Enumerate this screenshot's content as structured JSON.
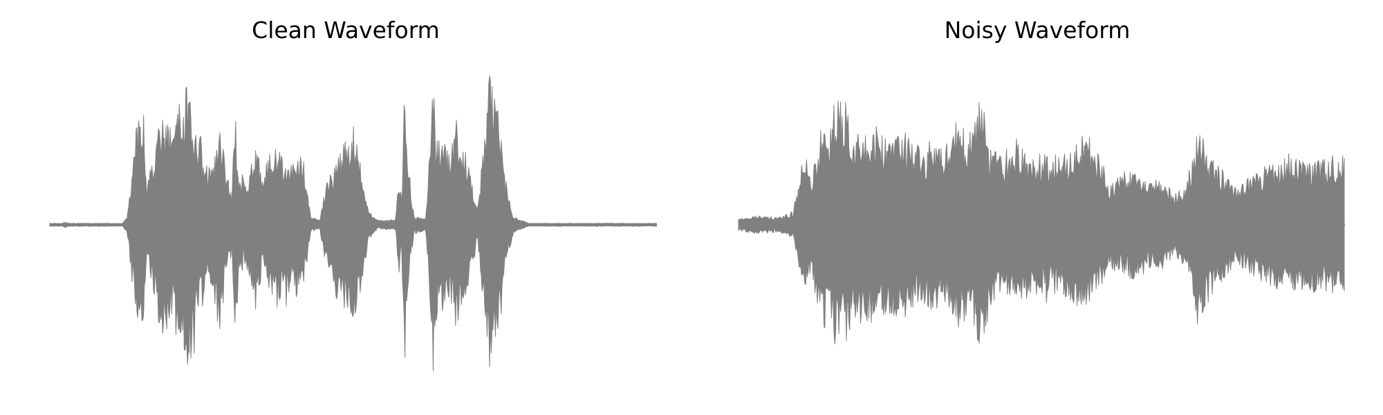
{
  "chart_data": [
    {
      "type": "line",
      "title": "Clean Waveform",
      "xlabel": "",
      "ylabel": "",
      "axis_visible": false,
      "grid": false,
      "x_range": [
        0,
        1
      ],
      "ylim": [
        -1,
        1
      ],
      "series": [
        {
          "color": "#808080",
          "envelope": [
            [
              0.0,
              0.01
            ],
            [
              0.02,
              0.01
            ],
            [
              0.025,
              0.02
            ],
            [
              0.03,
              0.01
            ],
            [
              0.12,
              0.01
            ],
            [
              0.128,
              0.06
            ],
            [
              0.135,
              0.35
            ],
            [
              0.145,
              0.7
            ],
            [
              0.15,
              0.8
            ],
            [
              0.155,
              0.75
            ],
            [
              0.16,
              0.25
            ],
            [
              0.17,
              0.45
            ],
            [
              0.18,
              0.65
            ],
            [
              0.19,
              0.72
            ],
            [
              0.2,
              0.62
            ],
            [
              0.21,
              0.78
            ],
            [
              0.22,
              0.82
            ],
            [
              0.23,
              0.92
            ],
            [
              0.24,
              0.68
            ],
            [
              0.25,
              0.55
            ],
            [
              0.26,
              0.35
            ],
            [
              0.27,
              0.45
            ],
            [
              0.28,
              0.72
            ],
            [
              0.29,
              0.35
            ],
            [
              0.3,
              0.2
            ],
            [
              0.305,
              0.8
            ],
            [
              0.312,
              0.3
            ],
            [
              0.325,
              0.28
            ],
            [
              0.34,
              0.55
            ],
            [
              0.35,
              0.3
            ],
            [
              0.365,
              0.5
            ],
            [
              0.38,
              0.48
            ],
            [
              0.395,
              0.45
            ],
            [
              0.41,
              0.45
            ],
            [
              0.42,
              0.4
            ],
            [
              0.43,
              0.05
            ],
            [
              0.445,
              0.03
            ],
            [
              0.452,
              0.2
            ],
            [
              0.47,
              0.45
            ],
            [
              0.49,
              0.58
            ],
            [
              0.5,
              0.6
            ],
            [
              0.505,
              0.55
            ],
            [
              0.515,
              0.4
            ],
            [
              0.525,
              0.1
            ],
            [
              0.54,
              0.03
            ],
            [
              0.57,
              0.03
            ],
            [
              0.575,
              0.35
            ],
            [
              0.58,
              0.2
            ],
            [
              0.585,
              0.98
            ],
            [
              0.59,
              0.45
            ],
            [
              0.6,
              0.06
            ],
            [
              0.62,
              0.04
            ],
            [
              0.632,
              0.95
            ],
            [
              0.64,
              0.55
            ],
            [
              0.65,
              0.55
            ],
            [
              0.66,
              0.45
            ],
            [
              0.67,
              0.7
            ],
            [
              0.68,
              0.55
            ],
            [
              0.695,
              0.3
            ],
            [
              0.705,
              0.1
            ],
            [
              0.715,
              0.55
            ],
            [
              0.725,
              0.99
            ],
            [
              0.735,
              0.85
            ],
            [
              0.745,
              0.55
            ],
            [
              0.755,
              0.2
            ],
            [
              0.765,
              0.05
            ],
            [
              0.79,
              0.01
            ],
            [
              1.0,
              0.01
            ]
          ]
        }
      ]
    },
    {
      "type": "line",
      "title": "Noisy Waveform",
      "xlabel": "",
      "ylabel": "",
      "axis_visible": false,
      "grid": false,
      "x_range": [
        0,
        1
      ],
      "ylim": [
        -1,
        1
      ],
      "series": [
        {
          "color": "#808080",
          "envelope": [
            [
              0.0,
              0.04
            ],
            [
              0.03,
              0.06
            ],
            [
              0.06,
              0.05
            ],
            [
              0.09,
              0.08
            ],
            [
              0.1,
              0.3
            ],
            [
              0.11,
              0.5
            ],
            [
              0.12,
              0.3
            ],
            [
              0.13,
              0.55
            ],
            [
              0.14,
              0.7
            ],
            [
              0.15,
              0.55
            ],
            [
              0.16,
              0.85
            ],
            [
              0.17,
              0.7
            ],
            [
              0.18,
              0.75
            ],
            [
              0.19,
              0.6
            ],
            [
              0.2,
              0.7
            ],
            [
              0.21,
              0.62
            ],
            [
              0.22,
              0.65
            ],
            [
              0.23,
              0.58
            ],
            [
              0.25,
              0.58
            ],
            [
              0.27,
              0.62
            ],
            [
              0.29,
              0.55
            ],
            [
              0.3,
              0.48
            ],
            [
              0.32,
              0.56
            ],
            [
              0.34,
              0.5
            ],
            [
              0.36,
              0.65
            ],
            [
              0.38,
              0.6
            ],
            [
              0.4,
              0.85
            ],
            [
              0.41,
              0.65
            ],
            [
              0.42,
              0.5
            ],
            [
              0.44,
              0.45
            ],
            [
              0.46,
              0.55
            ],
            [
              0.48,
              0.45
            ],
            [
              0.5,
              0.45
            ],
            [
              0.52,
              0.45
            ],
            [
              0.54,
              0.45
            ],
            [
              0.56,
              0.62
            ],
            [
              0.58,
              0.5
            ],
            [
              0.6,
              0.45
            ],
            [
              0.61,
              0.25
            ],
            [
              0.62,
              0.3
            ],
            [
              0.64,
              0.35
            ],
            [
              0.66,
              0.35
            ],
            [
              0.68,
              0.28
            ],
            [
              0.7,
              0.3
            ],
            [
              0.72,
              0.2
            ],
            [
              0.74,
              0.28
            ],
            [
              0.76,
              0.65
            ],
            [
              0.78,
              0.45
            ],
            [
              0.8,
              0.35
            ],
            [
              0.82,
              0.25
            ],
            [
              0.84,
              0.3
            ],
            [
              0.86,
              0.35
            ],
            [
              0.88,
              0.4
            ],
            [
              0.9,
              0.42
            ],
            [
              0.92,
              0.42
            ],
            [
              0.94,
              0.44
            ],
            [
              0.96,
              0.42
            ],
            [
              0.98,
              0.44
            ],
            [
              1.0,
              0.44
            ]
          ]
        }
      ]
    }
  ]
}
